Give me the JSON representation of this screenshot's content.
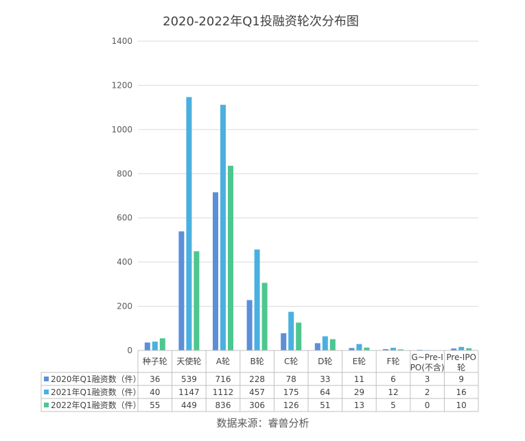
{
  "chart_data": {
    "type": "bar",
    "title": "2020-2022年Q1投融资轮次分布图",
    "categories": [
      "种子轮",
      "天使轮",
      "A轮",
      "B轮",
      "C轮",
      "D轮",
      "E轮",
      "F轮",
      "G~Pre-IPO(不含)",
      "Pre-IPO轮"
    ],
    "category_lines": [
      [
        "种子轮"
      ],
      [
        "天使轮"
      ],
      [
        "A轮"
      ],
      [
        "B轮"
      ],
      [
        "C轮"
      ],
      [
        "D轮"
      ],
      [
        "E轮"
      ],
      [
        "F轮"
      ],
      [
        "G~Pre-I",
        "PO(不含)"
      ],
      [
        "Pre-IPO",
        "轮"
      ]
    ],
    "series": [
      {
        "name": "2020年Q1融资数（件）",
        "color": "#5B8FD8",
        "values": [
          36,
          539,
          716,
          228,
          78,
          33,
          11,
          6,
          3,
          9
        ]
      },
      {
        "name": "2021年Q1融资数（件）",
        "color": "#4AB0E0",
        "values": [
          40,
          1147,
          1112,
          457,
          175,
          64,
          29,
          12,
          2,
          16
        ]
      },
      {
        "name": "2022年Q1融资数（件）",
        "color": "#4CC78F",
        "values": [
          55,
          449,
          836,
          306,
          126,
          51,
          13,
          5,
          0,
          10
        ]
      }
    ],
    "ylim": [
      0,
      1400
    ],
    "yticks": [
      0,
      200,
      400,
      600,
      800,
      1000,
      1200,
      1400
    ],
    "grid": true,
    "legend": "data-table"
  },
  "source": "数据来源：睿兽分析"
}
